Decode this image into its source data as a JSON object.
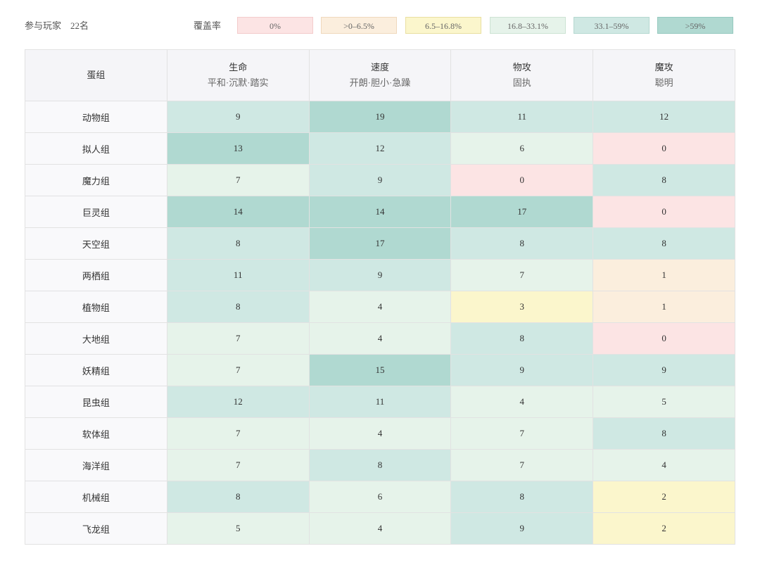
{
  "header": {
    "label": "参与玩家",
    "count": "22名"
  },
  "legend": {
    "title": "覆盖率",
    "items": [
      {
        "label": "0%",
        "color": "#fce4e4",
        "border": "#f3cccc"
      },
      {
        "label": ">0–6.5%",
        "color": "#fbeedd",
        "border": "#efd9bd"
      },
      {
        "label": "6.5–16.8%",
        "color": "#fbf6cc",
        "border": "#e9dfa0"
      },
      {
        "label": "16.8–33.1%",
        "color": "#e6f3ea",
        "border": "#cde3d3"
      },
      {
        "label": "33.1–59%",
        "color": "#cfe8e3",
        "border": "#b5d8d0"
      },
      {
        "label": ">59%",
        "color": "#b0d9d1",
        "border": "#96c9bf"
      }
    ]
  },
  "table": {
    "corner": "蛋组",
    "columns": [
      {
        "name": "生命",
        "sub": "平和·沉默·踏实"
      },
      {
        "name": "速度",
        "sub": "开朗·胆小·急躁"
      },
      {
        "name": "物攻",
        "sub": "固执"
      },
      {
        "name": "魔攻",
        "sub": "聪明"
      }
    ],
    "rows": [
      {
        "name": "动物组",
        "values": [
          9,
          19,
          11,
          12
        ],
        "colors": [
          "#cfe8e3",
          "#b0d9d1",
          "#cfe8e3",
          "#cfe8e3"
        ]
      },
      {
        "name": "拟人组",
        "values": [
          13,
          12,
          6,
          0
        ],
        "colors": [
          "#b0d9d1",
          "#cfe8e3",
          "#e6f3ea",
          "#fce4e4"
        ]
      },
      {
        "name": "魔力组",
        "values": [
          7,
          9,
          0,
          8
        ],
        "colors": [
          "#e6f3ea",
          "#cfe8e3",
          "#fce4e4",
          "#cfe8e3"
        ]
      },
      {
        "name": "巨灵组",
        "values": [
          14,
          14,
          17,
          0
        ],
        "colors": [
          "#b0d9d1",
          "#b0d9d1",
          "#b0d9d1",
          "#fce4e4"
        ]
      },
      {
        "name": "天空组",
        "values": [
          8,
          17,
          8,
          8
        ],
        "colors": [
          "#cfe8e3",
          "#b0d9d1",
          "#cfe8e3",
          "#cfe8e3"
        ]
      },
      {
        "name": "两栖组",
        "values": [
          11,
          9,
          7,
          1
        ],
        "colors": [
          "#cfe8e3",
          "#cfe8e3",
          "#e6f3ea",
          "#fbeedd"
        ]
      },
      {
        "name": "植物组",
        "values": [
          8,
          4,
          3,
          1
        ],
        "colors": [
          "#cfe8e3",
          "#e6f3ea",
          "#fbf6cc",
          "#fbeedd"
        ]
      },
      {
        "name": "大地组",
        "values": [
          7,
          4,
          8,
          0
        ],
        "colors": [
          "#e6f3ea",
          "#e6f3ea",
          "#cfe8e3",
          "#fce4e4"
        ]
      },
      {
        "name": "妖精组",
        "values": [
          7,
          15,
          9,
          9
        ],
        "colors": [
          "#e6f3ea",
          "#b0d9d1",
          "#cfe8e3",
          "#cfe8e3"
        ]
      },
      {
        "name": "昆虫组",
        "values": [
          12,
          11,
          4,
          5
        ],
        "colors": [
          "#cfe8e3",
          "#cfe8e3",
          "#e6f3ea",
          "#e6f3ea"
        ]
      },
      {
        "name": "软体组",
        "values": [
          7,
          4,
          7,
          8
        ],
        "colors": [
          "#e6f3ea",
          "#e6f3ea",
          "#e6f3ea",
          "#cfe8e3"
        ]
      },
      {
        "name": "海洋组",
        "values": [
          7,
          8,
          7,
          4
        ],
        "colors": [
          "#e6f3ea",
          "#cfe8e3",
          "#e6f3ea",
          "#e6f3ea"
        ]
      },
      {
        "name": "机械组",
        "values": [
          8,
          6,
          8,
          2
        ],
        "colors": [
          "#cfe8e3",
          "#e6f3ea",
          "#cfe8e3",
          "#fbf6cc"
        ]
      },
      {
        "name": "飞龙组",
        "values": [
          5,
          4,
          9,
          2
        ],
        "colors": [
          "#e6f3ea",
          "#e6f3ea",
          "#cfe8e3",
          "#fbf6cc"
        ]
      }
    ]
  }
}
